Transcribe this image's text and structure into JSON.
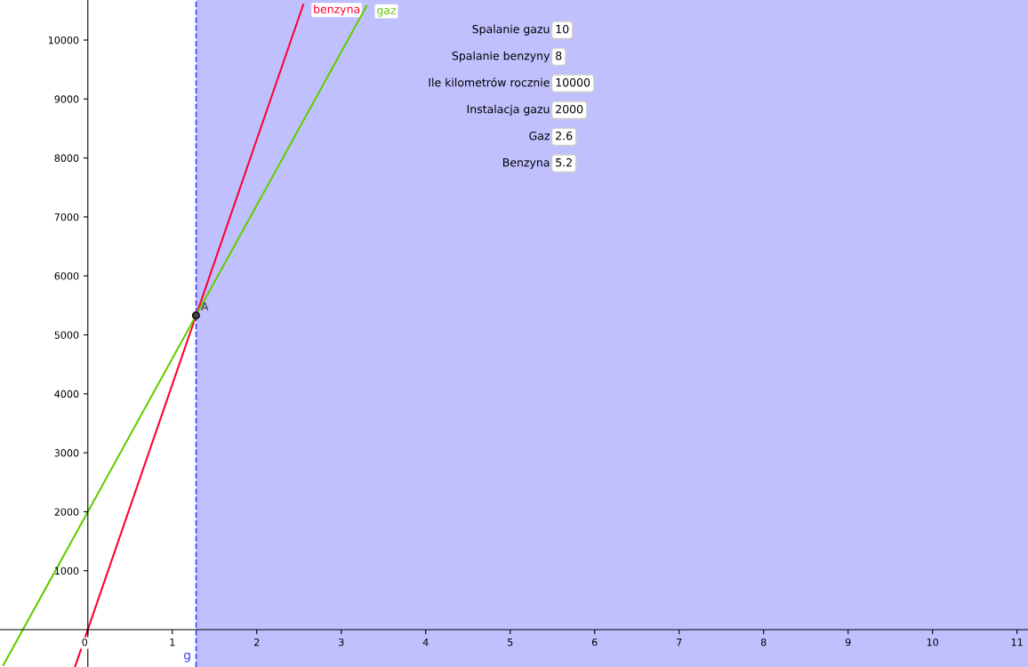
{
  "chart_data": {
    "type": "line",
    "series": [
      {
        "name": "benzyna",
        "color": "#ff0033",
        "x": [
          -0.15,
          2.55
        ],
        "values": [
          -620,
          10600
        ]
      },
      {
        "name": "gaz",
        "color": "#66cc00",
        "x": [
          -1.0,
          3.3
        ],
        "values": [
          -600,
          10580
        ]
      },
      {
        "name": "A",
        "type": "scatter",
        "color": "#444444",
        "x": [
          1.28
        ],
        "values": [
          5330
        ]
      }
    ],
    "xlim": [
      -1.04,
      11.13
    ],
    "ylim": [
      -633,
      10679
    ],
    "xticks": [
      0,
      1,
      2,
      3,
      4,
      5,
      6,
      7,
      8,
      9,
      10,
      11
    ],
    "yticks": [
      1000,
      2000,
      3000,
      4000,
      5000,
      6000,
      7000,
      8000,
      9000,
      10000
    ],
    "bands": [
      {
        "axis": "x",
        "from": 1.282,
        "to": 11.13,
        "color": "#c0c0ff"
      }
    ],
    "ref_lines": [
      {
        "axis": "x",
        "value": 1.282,
        "label": "g",
        "color": "#4040ff",
        "line_style": "dashed"
      }
    ],
    "annotations": [
      "Spalanie gazu",
      "10",
      "Spalanie benzyny",
      "8",
      "Ile kilometrów rocznie",
      "10000",
      "Instalacja gazu",
      "2000",
      "Gaz",
      "2.6",
      "Benzyna",
      "5.2"
    ],
    "grid": false,
    "legend": false
  }
}
